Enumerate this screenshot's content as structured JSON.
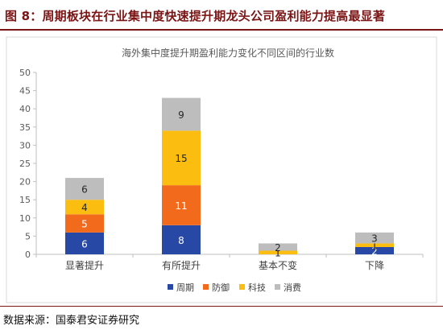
{
  "figure": {
    "title": "图 8：周期板块在行业集中度快速提升期龙头公司盈利能力提高最显著",
    "source": "数据来源：国泰君安证券研究"
  },
  "chart_data": {
    "type": "bar",
    "stacked": true,
    "title": "海外集中度提升期盈利能力变化不同区间的行业数",
    "xlabel": "",
    "ylabel": "",
    "ylim": [
      0,
      50
    ],
    "yticks": [
      0,
      5,
      10,
      15,
      20,
      25,
      30,
      35,
      40,
      45,
      50
    ],
    "grid": false,
    "legend_position": "bottom",
    "categories": [
      "显著提升",
      "有所提升",
      "基本不变",
      "下降"
    ],
    "series": [
      {
        "name": "周期",
        "color": "#2748a4",
        "values": [
          6,
          8,
          0,
          2
        ]
      },
      {
        "name": "防御",
        "color": "#f26b1d",
        "values": [
          5,
          11,
          0,
          0
        ]
      },
      {
        "name": "科技",
        "color": "#fbbd10",
        "values": [
          4,
          15,
          1,
          1
        ]
      },
      {
        "name": "消费",
        "color": "#bdbdbd",
        "values": [
          6,
          9,
          2,
          3
        ]
      }
    ]
  }
}
